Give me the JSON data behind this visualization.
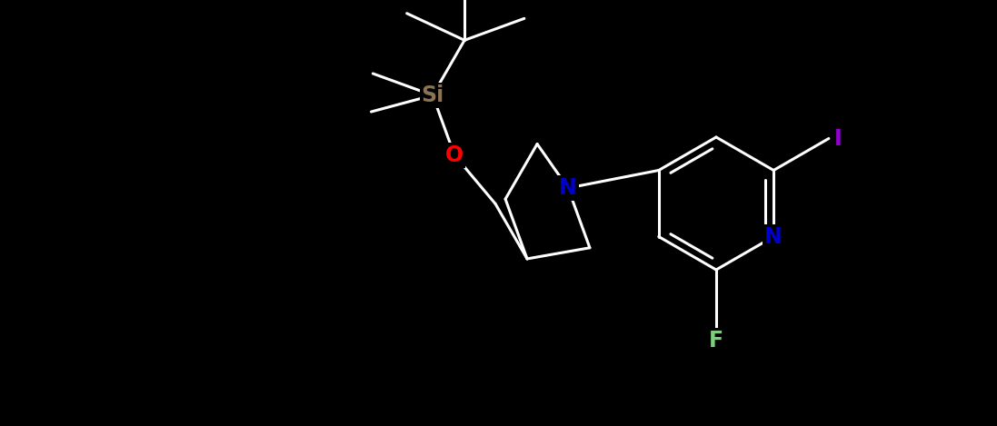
{
  "bg_color": "#000000",
  "bond_color": "#ffffff",
  "bond_width": 2.2,
  "atom_labels": {
    "Si": {
      "color": "#8B7355",
      "fontsize": 17
    },
    "O": {
      "color": "#FF0000",
      "fontsize": 17
    },
    "N_pyrrolidine": {
      "color": "#0000CD",
      "fontsize": 17
    },
    "N_pyridine": {
      "color": "#0000CD",
      "fontsize": 17
    },
    "F": {
      "color": "#7CCD7C",
      "fontsize": 17
    },
    "I": {
      "color": "#9400D3",
      "fontsize": 17
    }
  },
  "figsize": [
    10.97,
    4.69
  ],
  "dpi": 100
}
